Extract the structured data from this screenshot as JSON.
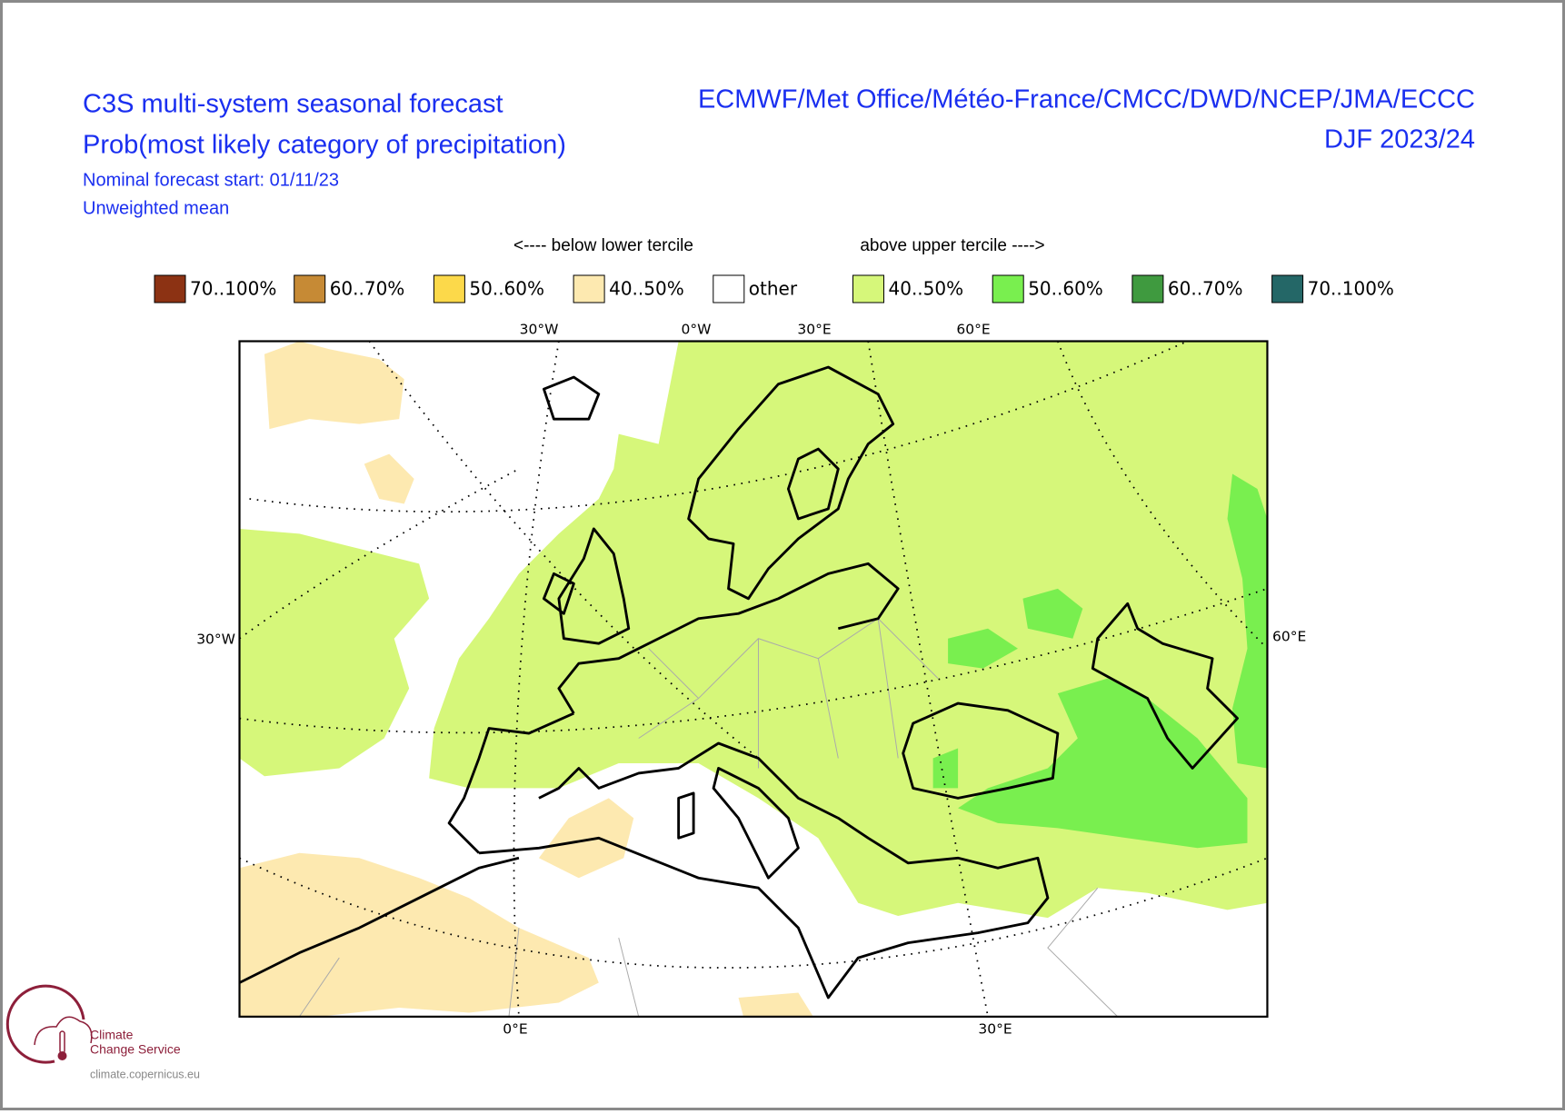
{
  "header": {
    "title": "C3S multi-system seasonal forecast",
    "subtitle": "Prob(most likely category of precipitation)",
    "forecast_start": "Nominal forecast start: 01/11/23",
    "method": "Unweighted mean",
    "systems": "ECMWF/Met Office/Météo-France/CMCC/DWD/NCEP/JMA/ECCC",
    "period": "DJF 2023/24"
  },
  "legend": {
    "below_label": "<---- below lower tercile",
    "above_label": "above upper tercile ---->",
    "items": [
      {
        "label": "70..100%",
        "color": "#8c3213"
      },
      {
        "label": "60..70%",
        "color": "#c68a35"
      },
      {
        "label": "50..60%",
        "color": "#fcd94a"
      },
      {
        "label": "40..50%",
        "color": "#fde9b0"
      },
      {
        "label": "other",
        "color": "#ffffff"
      },
      {
        "label": "40..50%",
        "color": "#d6f77a"
      },
      {
        "label": "50..60%",
        "color": "#79ef4f"
      },
      {
        "label": "60..70%",
        "color": "#3f9a3f"
      },
      {
        "label": "70..100%",
        "color": "#246767"
      }
    ]
  },
  "map": {
    "top_labels": [
      "30°W",
      "0°W",
      "30°E",
      "60°E"
    ],
    "left_labels": [
      "30°W"
    ],
    "right_labels": [
      "60°E"
    ],
    "bottom_labels": [
      "0°E",
      "30°E"
    ]
  },
  "logo": {
    "line1": "Climate",
    "line2": "Change Service",
    "url": "climate.copernicus.eu"
  }
}
